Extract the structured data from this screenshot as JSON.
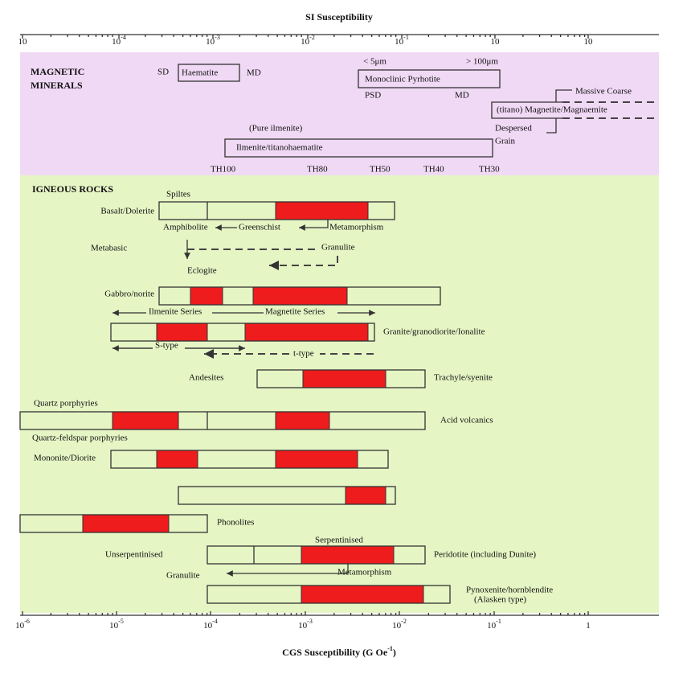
{
  "header": {
    "top_axis_title": "SI Susceptibility",
    "bottom_axis_title": "CGS Susceptibility (G Oe",
    "bottom_axis_title_exp": "-1",
    "bottom_axis_title_end": ")"
  },
  "top_ticks": [
    {
      "base": "10",
      "exp": ""
    },
    {
      "base": "10",
      "exp": "-4"
    },
    {
      "base": "10",
      "exp": "-3"
    },
    {
      "base": "10",
      "exp": "-2"
    },
    {
      "base": "10",
      "exp": "-1"
    },
    {
      "base": "10",
      "exp": ""
    },
    {
      "base": "10",
      "exp": ""
    }
  ],
  "bottom_ticks": [
    {
      "base": "10",
      "exp": "-6"
    },
    {
      "base": "10",
      "exp": "-5"
    },
    {
      "base": "10",
      "exp": "-4"
    },
    {
      "base": "10",
      "exp": "-3"
    },
    {
      "base": "10",
      "exp": "-2"
    },
    {
      "base": "10",
      "exp": "-1"
    },
    {
      "base": "1",
      "exp": ""
    }
  ],
  "magnetic": {
    "title_1": "MAGNETIC",
    "title_2": "MINERALS",
    "sd": "SD",
    "haematite": "Haematite",
    "md1": "MD",
    "lt5": "< 5μm",
    "gt100": "> 100μm",
    "pyrrhotite": "Monoclinic Pyrhotite",
    "psd": "PSD",
    "md2": "MD",
    "massive": "Massive Coarse",
    "magnetite": "(titano) Magnetite/Magnaemite",
    "despersed": "Despersed",
    "grain": "Grain",
    "pure_ilmenite": "(Pure ilmenite)",
    "ilmenite": "Ilmenite/titanohaematite",
    "th": [
      "TH100",
      "TH80",
      "TH50",
      "TH40",
      "TH30"
    ]
  },
  "igneous": {
    "title": "IGNEOUS ROCKS",
    "spiltes": "Spiltes",
    "basalt": "Basalt/Dolerite",
    "amphibolite": "Amphibolite",
    "greenschist": "Greenschist",
    "metamorphism1": "Metamorphism",
    "metabasic": "Metabasic",
    "granulite1": "Granulite",
    "eclogite": "Eclogite",
    "gabbro": "Gabbro/norite",
    "ilmenite_series": "Ilmenite Series",
    "magnetite_series": "Magnetite Series",
    "granite": "Granite/granodiorite/Ionalite",
    "s_type": "S-type",
    "t_type": "t-type",
    "andesites": "Andesites",
    "trachyte": "Trachyle/syenite",
    "quartz_porph": "Quartz porphyries",
    "acid": "Acid volcanics",
    "qf_porph": "Quartz-feldspar porphyries",
    "mononite": "Mononite/Diorite",
    "phonolites": "Phonolites",
    "serpentinised": "Serpentinised",
    "unserpentinised": "Unserpentinised",
    "peridotite": "Peridotite (including Dunite)",
    "granulite2": "Granulite",
    "metamorphism2": "Metamorphism",
    "pyroxenite": "Pynoxenite/hornblendite",
    "alasken": "(Alasken type)"
  }
}
